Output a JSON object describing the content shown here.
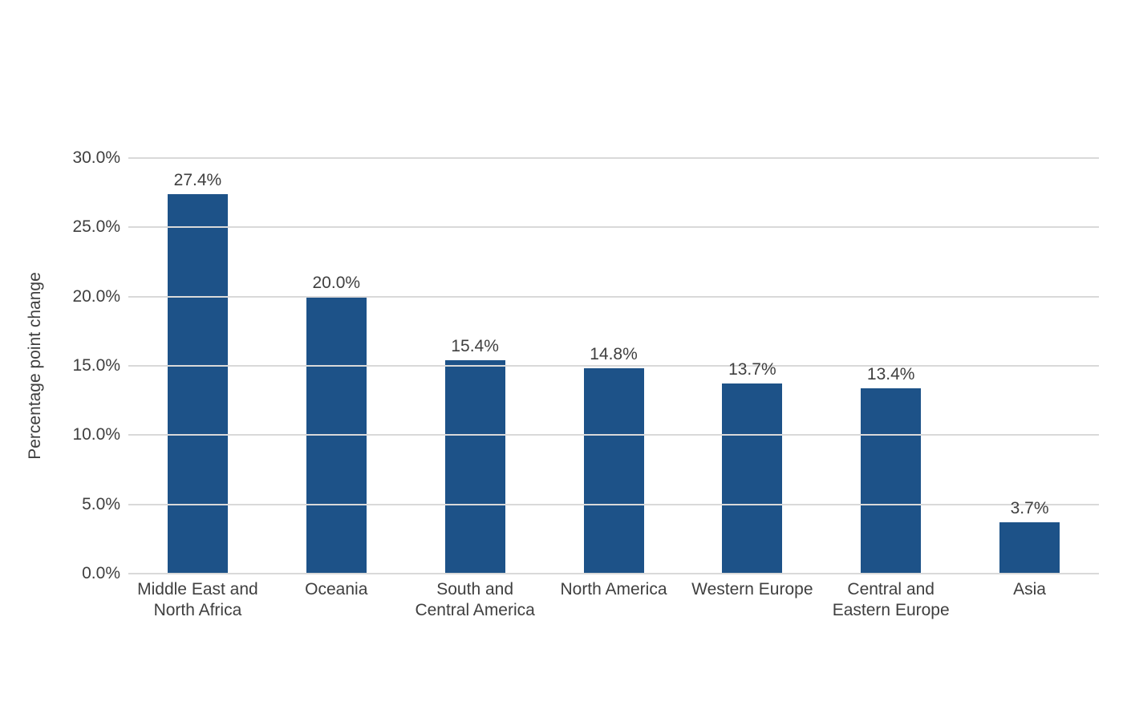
{
  "chart_data": {
    "type": "bar",
    "title": "",
    "xlabel": "",
    "ylabel": "Percentage point change",
    "ylim": [
      0,
      30
    ],
    "yticks": [
      0,
      5,
      10,
      15,
      20,
      25,
      30
    ],
    "ytick_labels": [
      "0.0%",
      "5.0%",
      "10.0%",
      "15.0%",
      "20.0%",
      "25.0%",
      "30.0%"
    ],
    "grid": true,
    "legend": false,
    "bar_color": "#1d5288",
    "gridline_color": "#d9d9d9",
    "text_color": "#3f3f3f",
    "categories": [
      "Middle East and North Africa",
      "Oceania",
      "South and Central America",
      "North America",
      "Western Europe",
      "Central and Eastern Europe",
      "Asia"
    ],
    "category_lines": [
      [
        "Middle East and",
        "North Africa"
      ],
      [
        "Oceania"
      ],
      [
        "South and",
        "Central America"
      ],
      [
        "North America"
      ],
      [
        "Western Europe"
      ],
      [
        "Central and",
        "Eastern Europe"
      ],
      [
        "Asia"
      ]
    ],
    "values": [
      27.4,
      20.0,
      15.4,
      14.8,
      13.7,
      13.4,
      3.7
    ],
    "value_labels": [
      "27.4%",
      "20.0%",
      "15.4%",
      "14.8%",
      "13.7%",
      "13.4%",
      "3.7%"
    ]
  }
}
